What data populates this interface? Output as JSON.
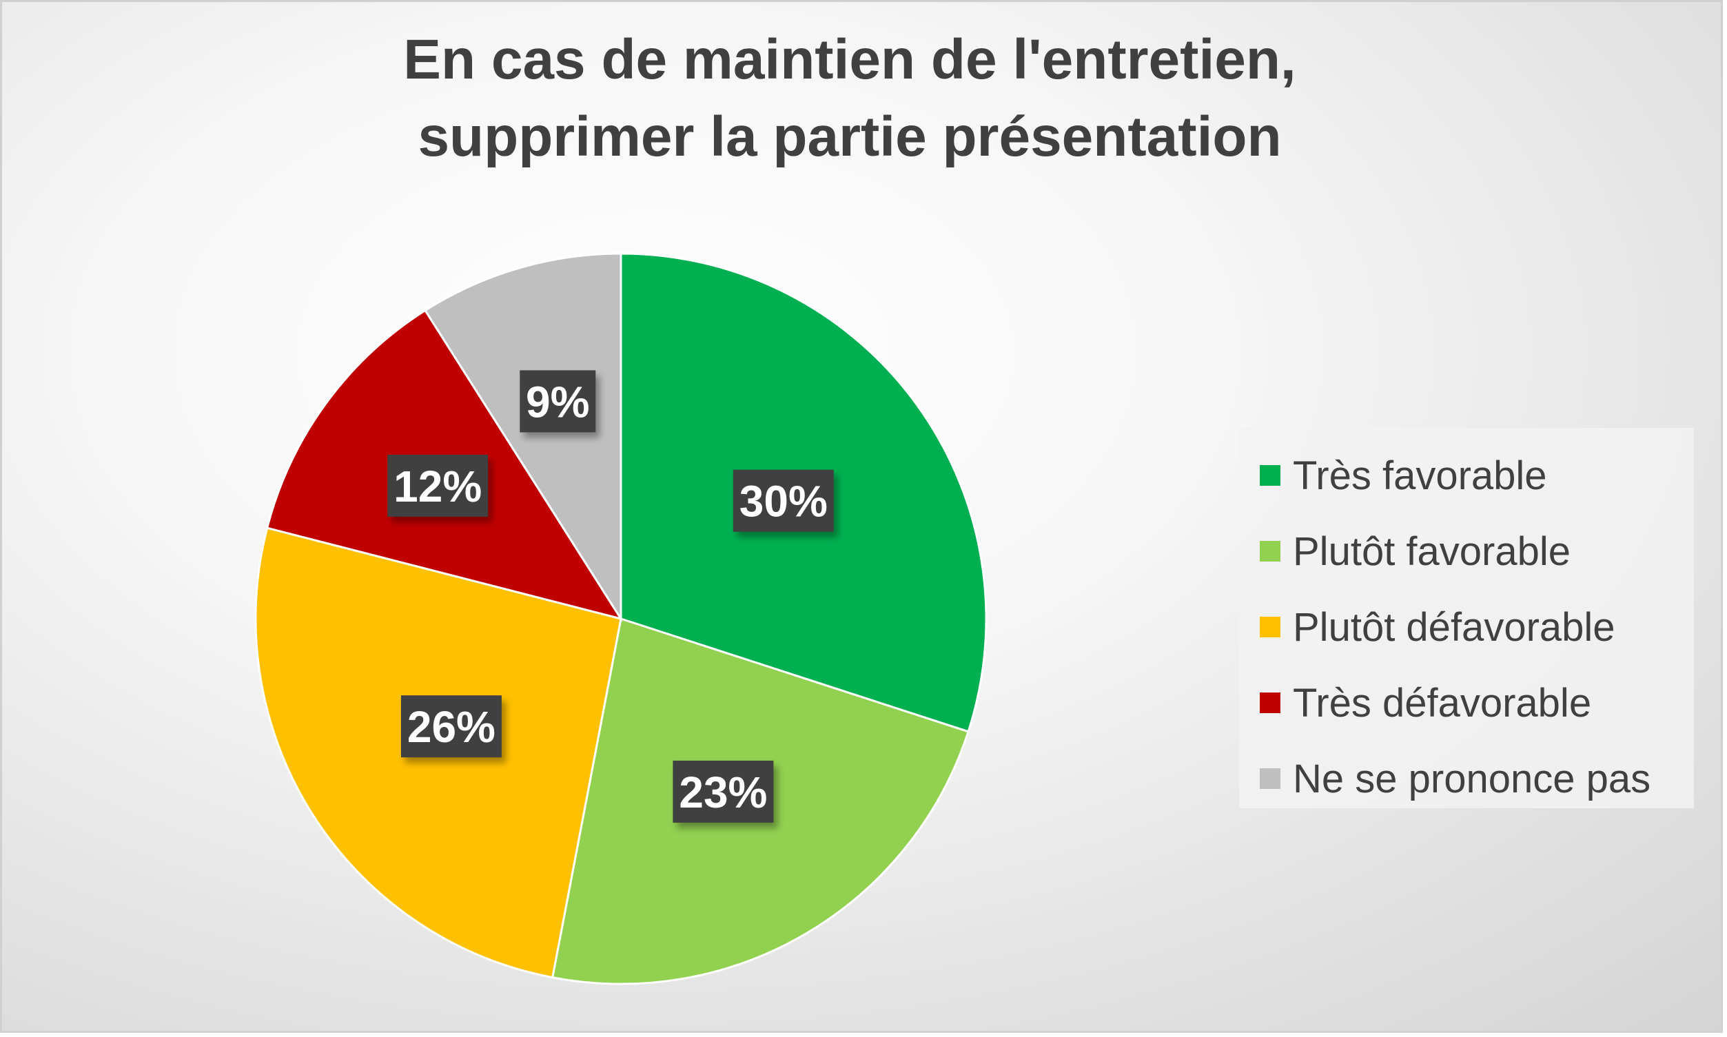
{
  "chart_data": {
    "type": "pie",
    "title": [
      "En cas de maintien de l'entretien,",
      "supprimer la partie présentation"
    ],
    "categories": [
      "Très favorable",
      "Plutôt favorable",
      "Plutôt défavorable",
      "Très défavorable",
      "Ne se prononce pas"
    ],
    "values": [
      30,
      23,
      26,
      12,
      9
    ],
    "data_labels": [
      "30%",
      "23%",
      "26%",
      "12%",
      "9%"
    ],
    "colors": [
      "#00b050",
      "#92d050",
      "#ffc000",
      "#c00000",
      "#bfbfbf"
    ],
    "start_angle": "12 o'clock",
    "direction": "clockwise",
    "legend_position": "right"
  }
}
